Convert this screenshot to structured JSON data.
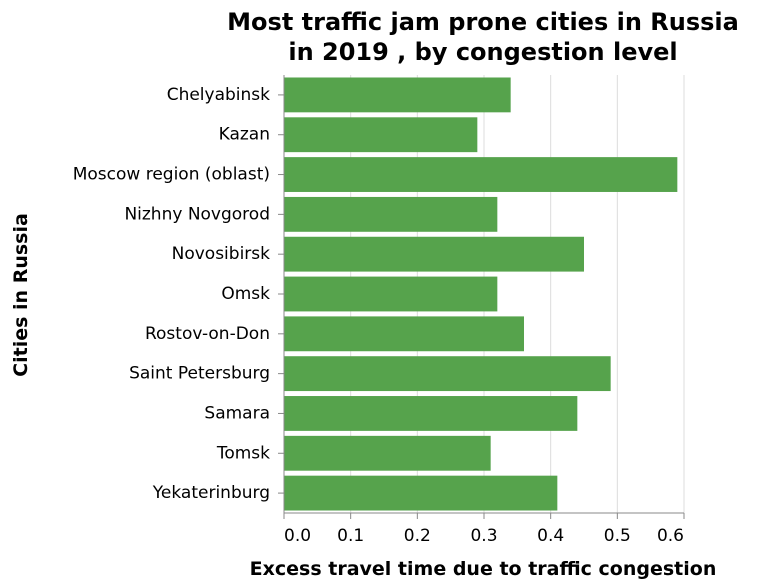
{
  "chart_data": {
    "type": "bar",
    "orientation": "horizontal",
    "title": "Most traffic jam prone cities in Russia in 2019 , by congestion level",
    "title_lines": [
      "Most traffic jam prone cities in Russia",
      "in 2019 , by congestion level"
    ],
    "xlabel": "Excess travel time due to traffic congestion",
    "ylabel": "Cities in Russia",
    "xlim": [
      0,
      0.6
    ],
    "xticks": [
      0.0,
      0.1,
      0.2,
      0.3,
      0.4,
      0.5,
      0.6
    ],
    "xtick_labels": [
      "0.0",
      "0.1",
      "0.2",
      "0.3",
      "0.4",
      "0.5",
      "0.6"
    ],
    "grid": true,
    "bar_color": "#56a34c",
    "categories": [
      "Chelyabinsk",
      "Kazan",
      "Moscow region (oblast)",
      "Nizhny Novgorod",
      "Novosibirsk",
      "Omsk",
      "Rostov-on-Don",
      "Saint Petersburg",
      "Samara",
      "Tomsk",
      "Yekaterinburg"
    ],
    "values": [
      0.34,
      0.29,
      0.59,
      0.32,
      0.45,
      0.32,
      0.36,
      0.49,
      0.44,
      0.31,
      0.41
    ]
  }
}
